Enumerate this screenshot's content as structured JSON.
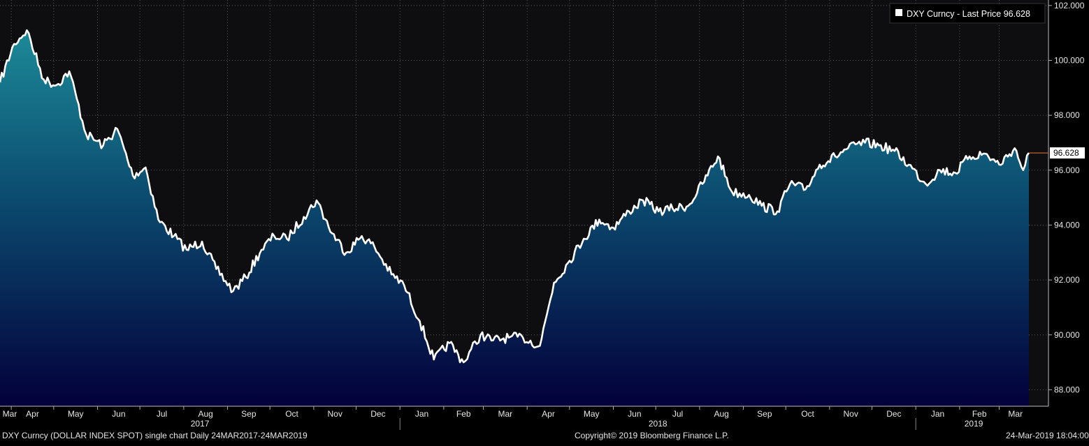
{
  "legend": {
    "label": "DXY Curncy - Last Price 96.628",
    "swatch_color": "#ffffff"
  },
  "last_price_label": "96.628",
  "footer": {
    "left": "DXY Curncy (DOLLAR INDEX SPOT) single chart  Daily 24MAR2017-24MAR2019",
    "center": "Copyright© 2019 Bloomberg Finance L.P.",
    "right": "24-Mar-2019 18:04:00"
  },
  "colors": {
    "background": "#0e0e10",
    "line": "#ffffff",
    "fill_top": "#1c8a98",
    "fill_bottom": "#03003a",
    "last_price_marker": "#e8772e",
    "grid": "#5a5a5a"
  },
  "chart_data": {
    "type": "area",
    "title": "",
    "xlabel": "",
    "ylabel": "",
    "ylim": [
      87.4,
      102.2
    ],
    "y_ticks": [
      "102.000",
      "100.000",
      "98.000",
      "96.000",
      "94.000",
      "92.000",
      "90.000",
      "88.000"
    ],
    "y_tick_values": [
      102,
      100,
      98,
      96,
      94,
      92,
      90,
      88
    ],
    "month_labels": [
      "Mar",
      "Apr",
      "May",
      "Jun",
      "Jul",
      "Aug",
      "Sep",
      "Oct",
      "Nov",
      "Dec",
      "Jan",
      "Feb",
      "Mar",
      "Apr",
      "May",
      "Jun",
      "Jul",
      "Aug",
      "Sep",
      "Oct",
      "Nov",
      "Dec",
      "Jan",
      "Feb",
      "Mar"
    ],
    "year_labels": [
      "2017",
      "2018",
      "2019"
    ],
    "grid": true,
    "legend_position": "top-right",
    "series": [
      {
        "name": "DXY Curncy - Last Price",
        "last_value": 96.628,
        "x": [
          "2017-03-24",
          "2017-04-03",
          "2017-04-12",
          "2017-04-24",
          "2017-05-03",
          "2017-05-12",
          "2017-05-24",
          "2017-06-05",
          "2017-06-15",
          "2017-06-26",
          "2017-07-05",
          "2017-07-14",
          "2017-07-25",
          "2017-08-03",
          "2017-08-14",
          "2017-08-24",
          "2017-09-05",
          "2017-09-14",
          "2017-09-25",
          "2017-10-04",
          "2017-10-13",
          "2017-10-25",
          "2017-11-03",
          "2017-11-14",
          "2017-11-24",
          "2017-12-05",
          "2017-12-14",
          "2017-12-26",
          "2018-01-04",
          "2018-01-15",
          "2018-01-25",
          "2018-02-05",
          "2018-02-15",
          "2018-02-27",
          "2018-03-08",
          "2018-03-19",
          "2018-03-29",
          "2018-04-10",
          "2018-04-20",
          "2018-05-01",
          "2018-05-11",
          "2018-05-22",
          "2018-06-01",
          "2018-06-12",
          "2018-06-22",
          "2018-07-03",
          "2018-07-13",
          "2018-07-24",
          "2018-08-03",
          "2018-08-14",
          "2018-08-24",
          "2018-09-05",
          "2018-09-14",
          "2018-09-25",
          "2018-10-04",
          "2018-10-15",
          "2018-10-25",
          "2018-11-05",
          "2018-11-14",
          "2018-11-26",
          "2018-12-06",
          "2018-12-17",
          "2018-12-27",
          "2019-01-08",
          "2019-01-18",
          "2019-01-29",
          "2019-02-08",
          "2019-02-19",
          "2019-03-01",
          "2019-03-12",
          "2019-03-18",
          "2019-03-22"
        ],
        "y": [
          99.2,
          100.6,
          101.1,
          99.3,
          99.1,
          99.6,
          97.3,
          96.9,
          97.5,
          95.8,
          96.1,
          94.2,
          93.6,
          93.1,
          93.4,
          92.4,
          91.6,
          92.1,
          93.1,
          93.6,
          93.5,
          94.3,
          94.9,
          93.7,
          93.0,
          93.6,
          93.2,
          92.2,
          91.8,
          90.5,
          89.1,
          89.7,
          89.0,
          90.0,
          89.8,
          89.9,
          89.9,
          89.6,
          91.9,
          92.7,
          93.5,
          94.2,
          93.9,
          94.5,
          94.9,
          94.5,
          94.6,
          94.7,
          95.5,
          96.5,
          95.2,
          95.1,
          94.7,
          94.5,
          95.5,
          95.3,
          96.2,
          96.5,
          96.8,
          97.0,
          96.9,
          96.7,
          96.2,
          95.5,
          96.0,
          95.9,
          96.5,
          96.6,
          96.2,
          96.8,
          96.0,
          96.628
        ]
      }
    ]
  }
}
